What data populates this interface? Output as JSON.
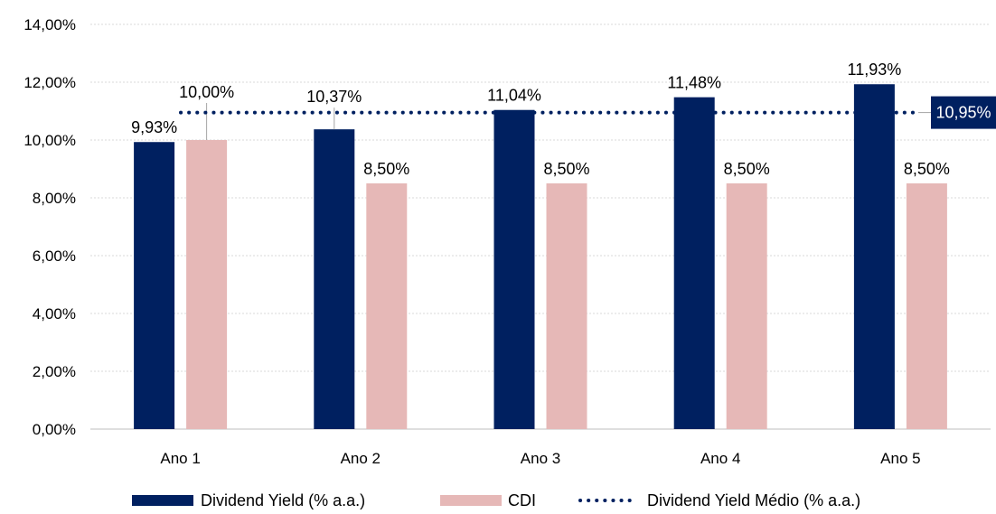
{
  "chart_data": {
    "type": "bar",
    "title": "",
    "xlabel": "",
    "ylabel": "",
    "categories": [
      "Ano 1",
      "Ano 2",
      "Ano 3",
      "Ano 4",
      "Ano 5"
    ],
    "series": [
      {
        "name": "Dividend Yield (% a.a.)",
        "color": "#002060",
        "values": [
          9.93,
          10.37,
          11.04,
          11.48,
          11.93
        ],
        "labels": [
          "9,93%",
          "10,37%",
          "11,04%",
          "11,48%",
          "11,93%"
        ]
      },
      {
        "name": "CDI",
        "color": "#E6B8B7",
        "values": [
          10.0,
          8.5,
          8.5,
          8.5,
          8.5
        ],
        "labels": [
          "10,00%",
          "8,50%",
          "8,50%",
          "8,50%",
          "8,50%"
        ]
      }
    ],
    "reference_line": {
      "name": "Dividend Yield Médio (% a.a.)",
      "value": 10.95,
      "label": "10,95%",
      "color": "#002060",
      "style": "dotted"
    },
    "ylim": [
      0,
      14
    ],
    "yticks": [
      0,
      2,
      4,
      6,
      8,
      10,
      12,
      14
    ],
    "ytick_labels": [
      "0,00%",
      "2,00%",
      "4,00%",
      "6,00%",
      "8,00%",
      "10,00%",
      "12,00%",
      "14,00%"
    ],
    "grid": true,
    "legend_position": "bottom"
  }
}
